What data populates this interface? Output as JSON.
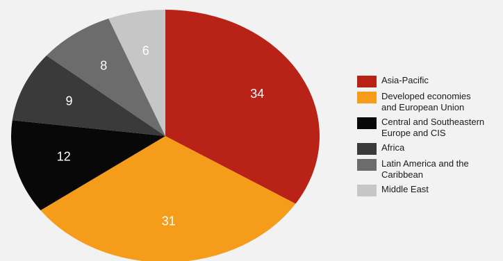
{
  "chart_data": {
    "type": "pie",
    "title": "",
    "series": [
      {
        "name": "Asia-Pacific",
        "value": 34,
        "color": "#b82217"
      },
      {
        "name": "Developed economies\nand European Union",
        "value": 31,
        "color": "#f59c1a"
      },
      {
        "name": "Central and Southeastern\nEurope and CIS",
        "value": 12,
        "color": "#080808"
      },
      {
        "name": "Africa",
        "value": 9,
        "color": "#3a3a3a"
      },
      {
        "name": "Latin America and the\nCaribbean",
        "value": 8,
        "color": "#6c6c6c"
      },
      {
        "name": "Middle East",
        "value": 6,
        "color": "#c6c6c6"
      }
    ],
    "start_angle_deg": 0,
    "direction": "clockwise",
    "legend_position": "right"
  }
}
